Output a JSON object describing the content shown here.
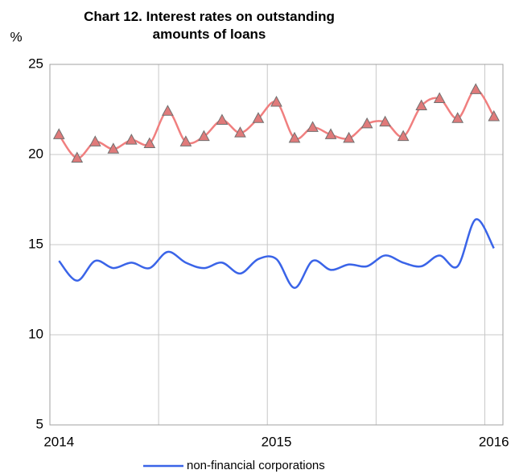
{
  "chart_data": {
    "type": "line",
    "title": "Chart 12. Interest rates on outstanding amounts of loans",
    "ylabel": "%",
    "categories": [
      "2014",
      null,
      null,
      null,
      null,
      null,
      null,
      null,
      null,
      null,
      null,
      null,
      "2015",
      null,
      null,
      null,
      null,
      null,
      null,
      null,
      null,
      null,
      null,
      null,
      "2016"
    ],
    "series": [
      {
        "color": "#f07f7f",
        "marker": "triangle",
        "marker_color": "#e07a7a",
        "values": [
          21.1,
          19.8,
          20.7,
          20.3,
          20.8,
          20.6,
          22.4,
          20.7,
          21.0,
          21.9,
          21.2,
          22.0,
          22.9,
          20.9,
          21.5,
          21.1,
          20.9,
          21.7,
          21.8,
          21.0,
          22.7,
          23.1,
          22.0,
          23.6,
          22.1
        ]
      },
      {
        "name": "non-financial corporations",
        "color": "#3a64e8",
        "values": [
          14.1,
          13.0,
          14.1,
          13.7,
          14.0,
          13.7,
          14.6,
          14.0,
          13.7,
          14.0,
          13.4,
          14.2,
          14.2,
          12.6,
          14.1,
          13.6,
          13.9,
          13.8,
          14.4,
          14.0,
          13.8,
          14.4,
          13.8,
          16.4,
          14.8
        ]
      }
    ],
    "ylim": [
      5,
      25
    ],
    "yticks": [
      5,
      10,
      15,
      20,
      25
    ],
    "grid": true,
    "legend": "bottom"
  }
}
